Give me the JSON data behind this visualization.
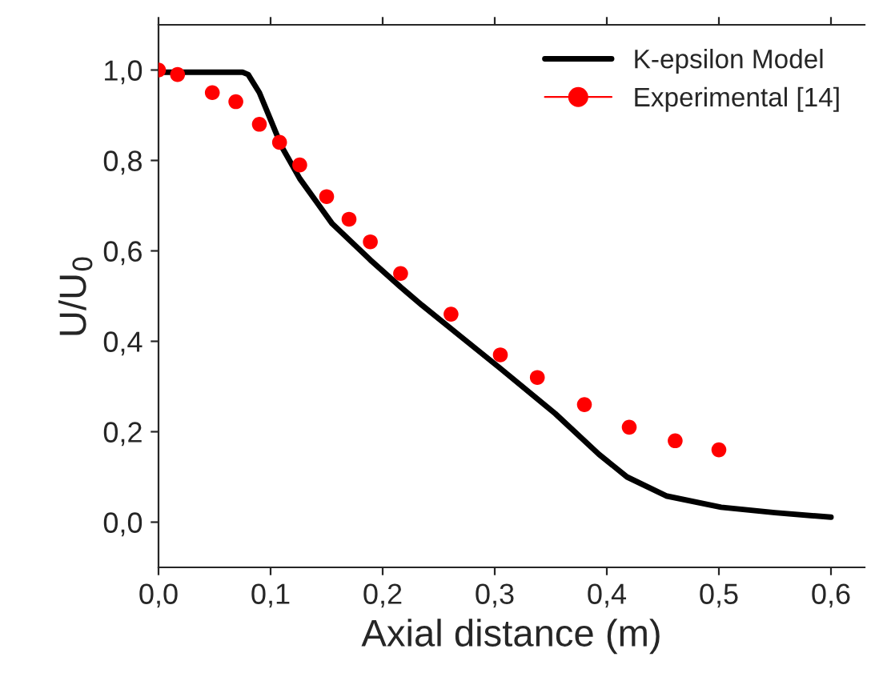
{
  "chart_data": {
    "type": "line",
    "xlabel": "Axial distance (m)",
    "ylabel": "U/U$_{0}$",
    "series": [
      {
        "name": "K-epsilon Model",
        "color": "#000000",
        "marker": "none",
        "x": [
          0,
          0.04,
          0.075,
          0.08,
          0.09,
          0.1,
          0.11,
          0.126,
          0.155,
          0.189,
          0.216,
          0.235,
          0.27,
          0.305,
          0.354,
          0.393,
          0.418,
          0.453,
          0.502,
          0.55,
          0.6
        ],
        "values": [
          0.995,
          0.995,
          0.995,
          0.99,
          0.95,
          0.89,
          0.83,
          0.76,
          0.66,
          0.58,
          0.52,
          0.48,
          0.41,
          0.34,
          0.24,
          0.15,
          0.1,
          0.058,
          0.033,
          0.021,
          0.011
        ]
      },
      {
        "name": "Experimental [14]",
        "color": "#ff0000",
        "type": "scatter",
        "marker": "circle",
        "x": [
          0,
          0.017,
          0.048,
          0.069,
          0.09,
          0.108,
          0.126,
          0.15,
          0.17,
          0.189,
          0.216,
          0.261,
          0.305,
          0.338,
          0.38,
          0.42,
          0.461,
          0.5
        ],
        "values": [
          1.0,
          0.99,
          0.95,
          0.93,
          0.88,
          0.84,
          0.79,
          0.72,
          0.67,
          0.62,
          0.55,
          0.46,
          0.37,
          0.32,
          0.26,
          0.21,
          0.18,
          0.16
        ]
      }
    ],
    "xlim": [
      0,
      0.63
    ],
    "ylim": [
      -0.1,
      1.1
    ],
    "xticks": [
      {
        "value": 0,
        "label": "0,0"
      },
      {
        "value": 0.1,
        "label": "0,1"
      },
      {
        "value": 0.2,
        "label": "0,2"
      },
      {
        "value": 0.3,
        "label": "0,3"
      },
      {
        "value": 0.4,
        "label": "0,4"
      },
      {
        "value": 0.5,
        "label": "0,5"
      },
      {
        "value": 0.6,
        "label": "0,6"
      }
    ],
    "yticks": [
      {
        "value": 0,
        "label": "0,0"
      },
      {
        "value": 0.2,
        "label": "0,2"
      },
      {
        "value": 0.4,
        "label": "0,4"
      },
      {
        "value": 0.6,
        "label": "0,6"
      },
      {
        "value": 0.8,
        "label": "0,8"
      },
      {
        "value": 1.0,
        "label": "1,0"
      }
    ],
    "legend": "top right",
    "grid": false
  }
}
